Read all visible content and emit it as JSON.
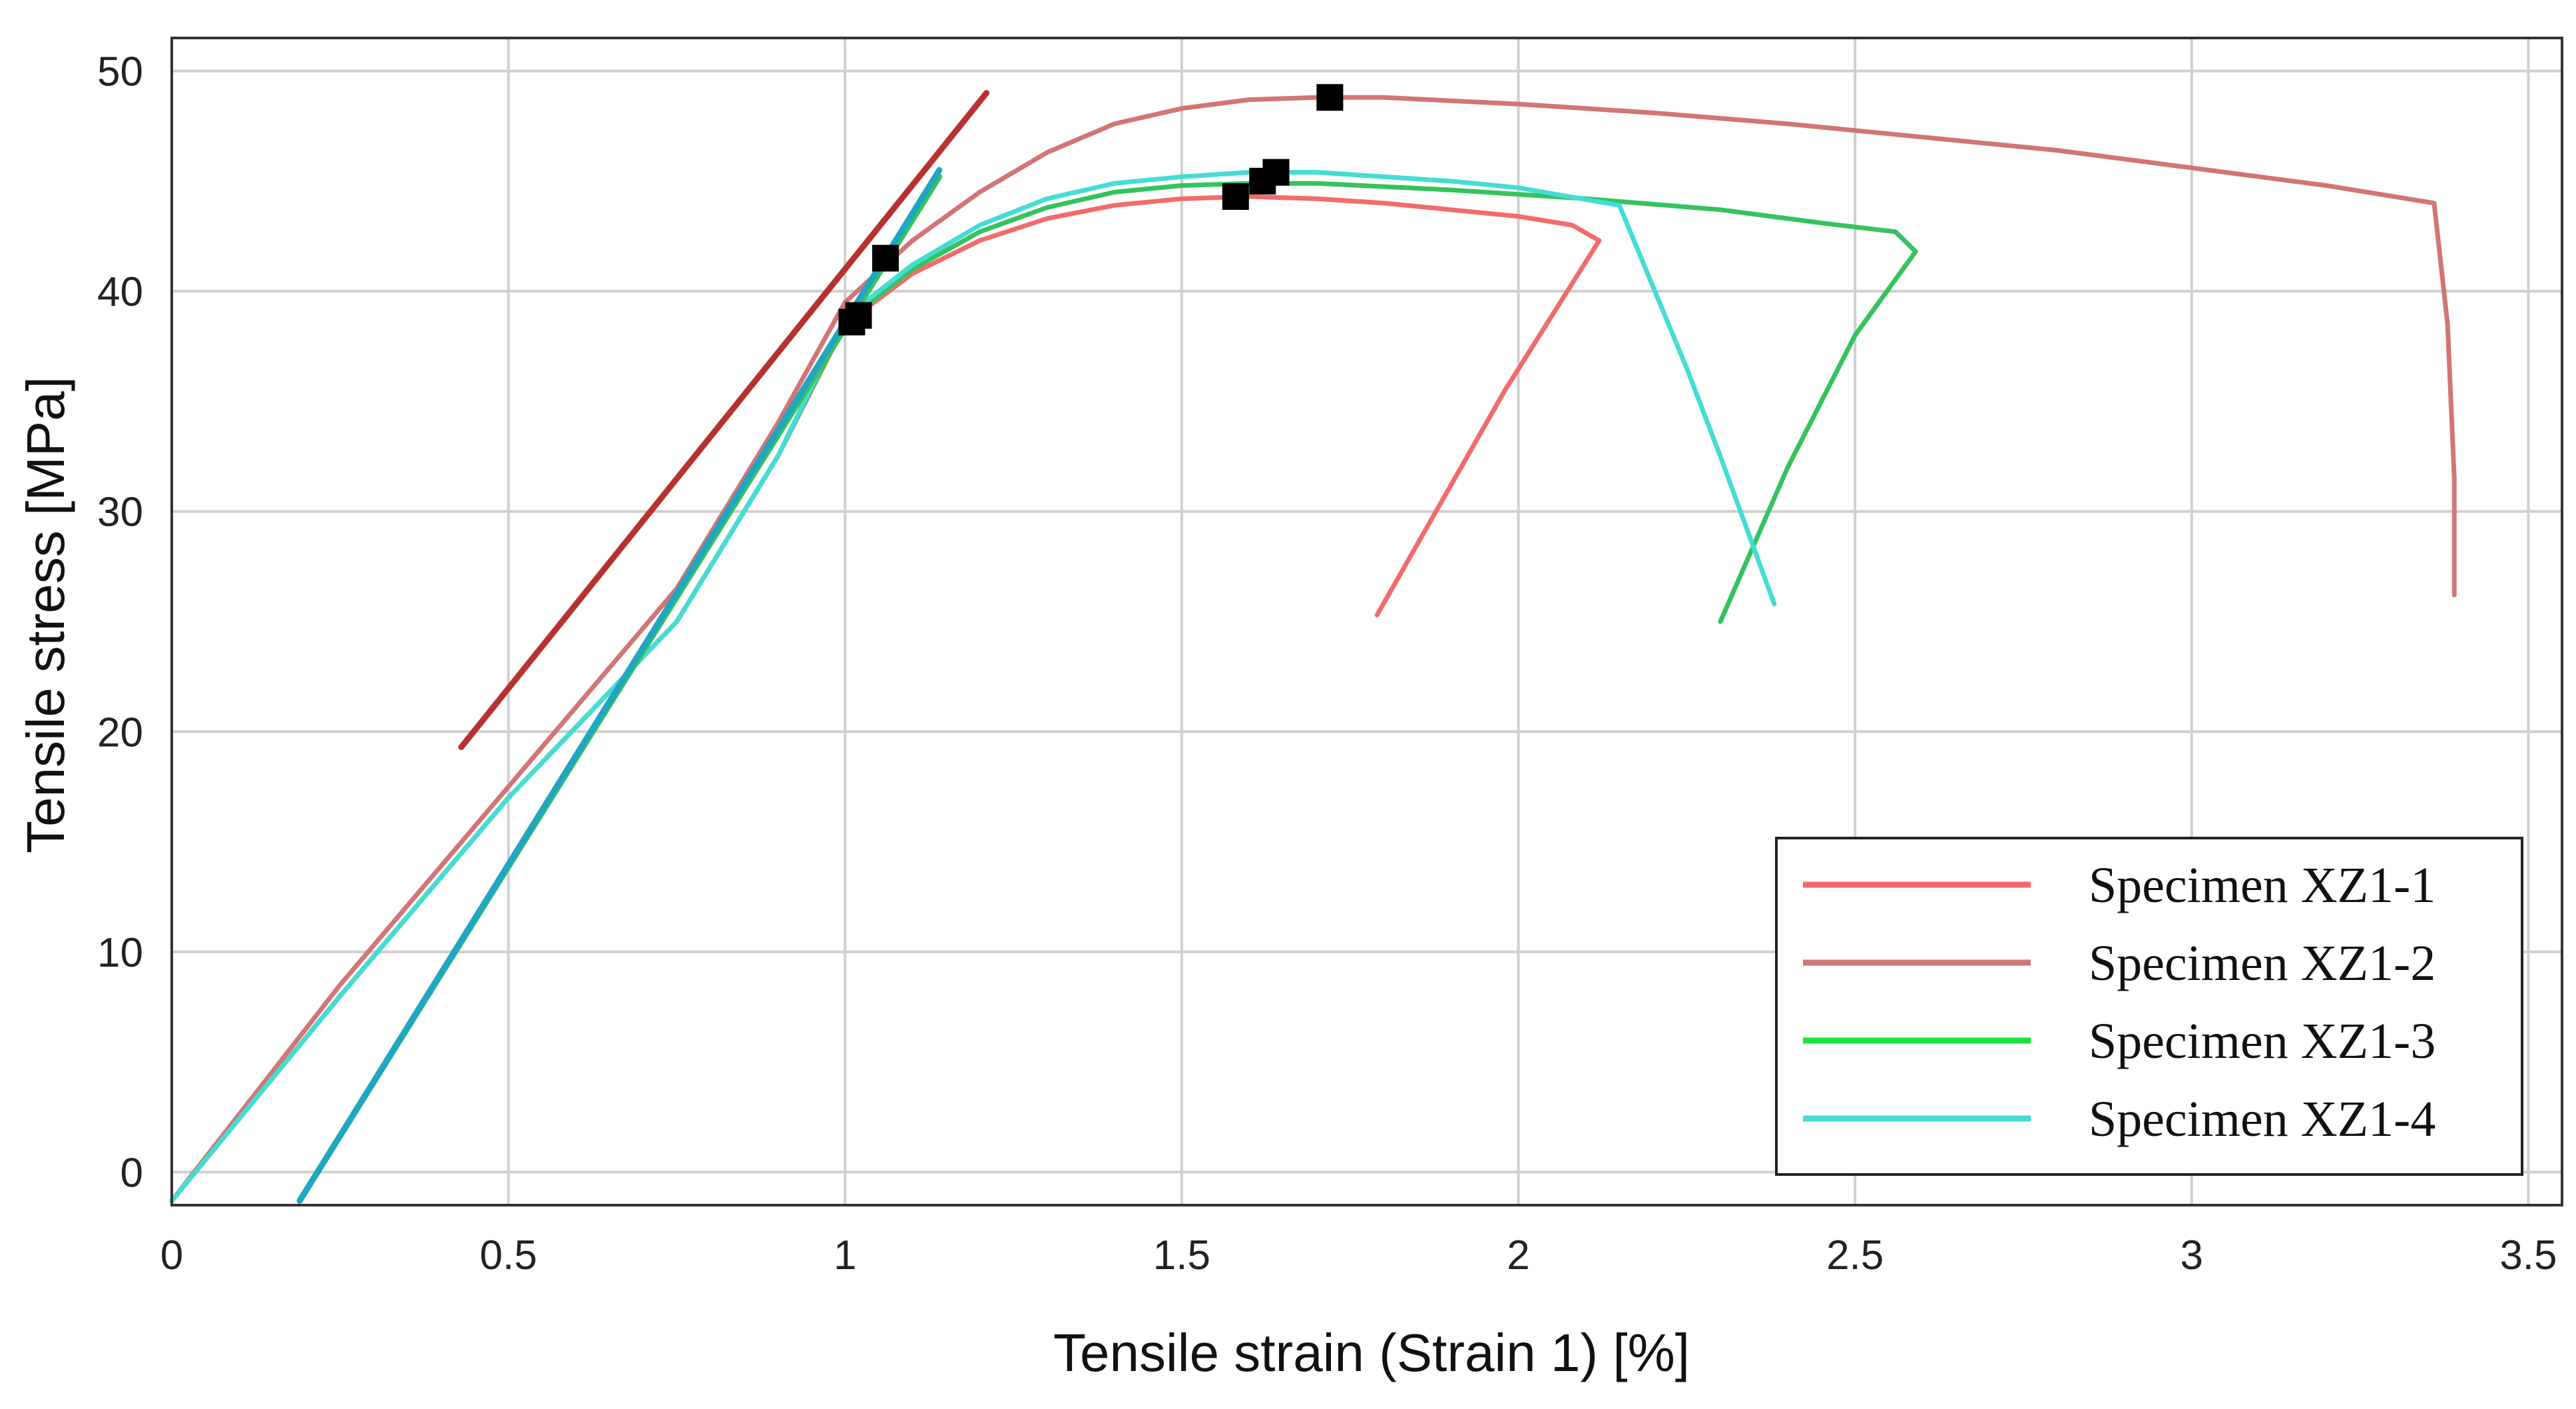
{
  "chart_data": {
    "type": "line",
    "title": "",
    "xlabel": "Tensile strain (Strain 1) [%]",
    "ylabel": "Tensile stress [MPa]",
    "xlim": [
      0,
      3.55
    ],
    "ylim": [
      -1.5,
      51.5
    ],
    "grid": true,
    "legend_position": "bottom-right",
    "x_ticks": [
      {
        "value": 0,
        "label": "0"
      },
      {
        "value": 0.5,
        "label": "0.5"
      },
      {
        "value": 1,
        "label": "1"
      },
      {
        "value": 1.5,
        "label": "1.5"
      },
      {
        "value": 2,
        "label": "2"
      },
      {
        "value": 2.5,
        "label": "2.5"
      },
      {
        "value": 3,
        "label": "3"
      },
      {
        "value": 3.5,
        "label": "3.5"
      }
    ],
    "y_ticks": [
      {
        "value": 0,
        "label": "0"
      },
      {
        "value": 10,
        "label": "10"
      },
      {
        "value": 20,
        "label": "20"
      },
      {
        "value": 30,
        "label": "30"
      },
      {
        "value": 40,
        "label": "40"
      },
      {
        "value": 50,
        "label": "50"
      }
    ],
    "series": [
      {
        "name": "Specimen XZ1-1",
        "color": "#f26b6b",
        "points": [
          [
            0,
            -1.3
          ],
          [
            0.25,
            8
          ],
          [
            0.5,
            17
          ],
          [
            0.75,
            25
          ],
          [
            0.9,
            32.5
          ],
          [
            1.0,
            38.5
          ],
          [
            1.1,
            40.8
          ],
          [
            1.2,
            42.3
          ],
          [
            1.3,
            43.3
          ],
          [
            1.4,
            43.9
          ],
          [
            1.5,
            44.2
          ],
          [
            1.6,
            44.3
          ],
          [
            1.7,
            44.2
          ],
          [
            1.8,
            44.0
          ],
          [
            1.9,
            43.7
          ],
          [
            2.0,
            43.4
          ],
          [
            2.08,
            43.0
          ],
          [
            2.12,
            42.3
          ],
          [
            1.98,
            35.5
          ],
          [
            1.79,
            25.3
          ]
        ]
      },
      {
        "name": "Specimen XZ1-2",
        "color": "#d27576",
        "points": [
          [
            0,
            -1.3
          ],
          [
            0.25,
            8.5
          ],
          [
            0.5,
            17.5
          ],
          [
            0.75,
            26.5
          ],
          [
            0.9,
            34
          ],
          [
            1.0,
            39.5
          ],
          [
            1.1,
            42.3
          ],
          [
            1.2,
            44.5
          ],
          [
            1.3,
            46.3
          ],
          [
            1.4,
            47.6
          ],
          [
            1.5,
            48.3
          ],
          [
            1.6,
            48.7
          ],
          [
            1.7,
            48.8
          ],
          [
            1.8,
            48.8
          ],
          [
            2.0,
            48.5
          ],
          [
            2.2,
            48.1
          ],
          [
            2.4,
            47.6
          ],
          [
            2.6,
            47.0
          ],
          [
            2.8,
            46.4
          ],
          [
            3.0,
            45.6
          ],
          [
            3.2,
            44.8
          ],
          [
            3.36,
            44.0
          ],
          [
            3.38,
            38.5
          ],
          [
            3.39,
            31.5
          ],
          [
            3.39,
            26.2
          ]
        ]
      },
      {
        "name": "Specimen XZ1-3",
        "color": "#35c35e",
        "points": [
          [
            0,
            -1.3
          ],
          [
            0.25,
            8
          ],
          [
            0.5,
            17
          ],
          [
            0.75,
            25
          ],
          [
            0.9,
            32.5
          ],
          [
            1.0,
            38.6
          ],
          [
            1.1,
            41.0
          ],
          [
            1.2,
            42.7
          ],
          [
            1.3,
            43.8
          ],
          [
            1.4,
            44.5
          ],
          [
            1.5,
            44.8
          ],
          [
            1.6,
            44.9
          ],
          [
            1.7,
            44.9
          ],
          [
            1.9,
            44.6
          ],
          [
            2.1,
            44.2
          ],
          [
            2.3,
            43.7
          ],
          [
            2.45,
            43.1
          ],
          [
            2.56,
            42.7
          ],
          [
            2.59,
            41.8
          ],
          [
            2.5,
            38
          ],
          [
            2.4,
            32
          ],
          [
            2.3,
            25
          ]
        ]
      },
      {
        "name": "Specimen XZ1-4",
        "color": "#45dcd6",
        "points": [
          [
            0,
            -1.3
          ],
          [
            0.25,
            8
          ],
          [
            0.5,
            17
          ],
          [
            0.75,
            25
          ],
          [
            0.9,
            32.5
          ],
          [
            1.0,
            38.8
          ],
          [
            1.1,
            41.2
          ],
          [
            1.2,
            43.0
          ],
          [
            1.3,
            44.2
          ],
          [
            1.4,
            44.9
          ],
          [
            1.5,
            45.2
          ],
          [
            1.6,
            45.4
          ],
          [
            1.7,
            45.4
          ],
          [
            1.8,
            45.2
          ],
          [
            1.9,
            45.0
          ],
          [
            2.0,
            44.7
          ],
          [
            2.15,
            43.9
          ],
          [
            2.25,
            36.5
          ],
          [
            2.3,
            32.5
          ],
          [
            2.38,
            25.8
          ]
        ]
      }
    ],
    "secant_lines": [
      {
        "color": "#b83131",
        "points": [
          [
            0.43,
            19.3
          ],
          [
            1.21,
            49.0
          ]
        ]
      },
      {
        "color": "#35c35e",
        "points": [
          [
            0.19,
            -1.3
          ],
          [
            1.14,
            45.2
          ]
        ]
      },
      {
        "color": "#1fa6c1",
        "points": [
          [
            0.19,
            -1.3
          ],
          [
            1.14,
            45.5
          ]
        ]
      }
    ],
    "markers": [
      [
        1.06,
        41.5
      ],
      [
        1.01,
        38.6
      ],
      [
        1.02,
        38.9
      ],
      [
        1.72,
        48.8
      ],
      [
        1.58,
        44.3
      ],
      [
        1.62,
        45.0
      ],
      [
        1.64,
        45.4
      ]
    ]
  },
  "legend": {
    "items": [
      {
        "label": "Specimen XZ1-1",
        "color": "#f26b6b"
      },
      {
        "label": "Specimen XZ1-2",
        "color": "#d27576"
      },
      {
        "label": "Specimen XZ1-3",
        "color": "#19e33a"
      },
      {
        "label": "Specimen XZ1-4",
        "color": "#45dcd6"
      }
    ]
  }
}
